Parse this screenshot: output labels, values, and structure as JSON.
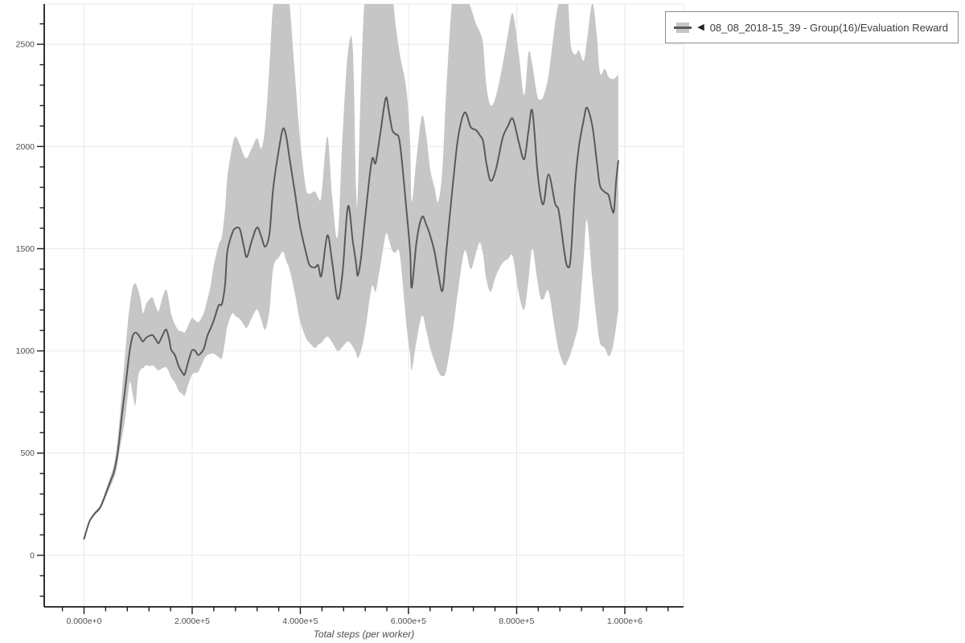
{
  "legend": {
    "collapse_icon": "◀",
    "label": "08_08_2018-15_39 - Group(16)/Evaluation Reward"
  },
  "colors": {
    "band": "#c6c6c6",
    "line": "#595959",
    "grid": "#e8e8e8",
    "axis": "#1a1a1a",
    "tick_label": "#4d4d4d",
    "axis_label": "#4d4d4d",
    "background": "#ffffff",
    "legend_border": "#8a8a8a"
  },
  "chart_data": {
    "type": "line",
    "title": "",
    "xlabel": "Total steps (per worker)",
    "ylabel": "",
    "grid": true,
    "legend_position": "top-right",
    "series_name": "08_08_2018-15_39 - Group(16)/Evaluation Reward",
    "band_meaning": "shaded min/max (std) envelope around mean evaluation reward",
    "xlim": [
      -73600,
      1108600
    ],
    "ylim": [
      -252,
      2697
    ],
    "x_major_ticks": [
      0,
      200000,
      400000,
      600000,
      800000,
      1000000
    ],
    "x_tick_labels": [
      "0.000e+0",
      "2.000e+5",
      "4.000e+5",
      "6.000e+5",
      "8.000e+5",
      "1.000e+6"
    ],
    "x_minor_tick_step": 40000,
    "y_major_ticks": [
      0,
      500,
      1000,
      1500,
      2000,
      2500
    ],
    "y_tick_labels": [
      "0",
      "500",
      "1000",
      "1500",
      "2000",
      "2500"
    ],
    "y_minor_tick_step": 100,
    "points_format": [
      "step",
      "mean",
      "band_low",
      "band_high"
    ],
    "points": [
      [
        0,
        80,
        80,
        80
      ],
      [
        10000,
        165,
        160,
        170
      ],
      [
        20000,
        205,
        197,
        213
      ],
      [
        30000,
        235,
        225,
        245
      ],
      [
        40000,
        300,
        283,
        317
      ],
      [
        50000,
        370,
        345,
        395
      ],
      [
        55000,
        405,
        375,
        440
      ],
      [
        60000,
        465,
        420,
        520
      ],
      [
        65000,
        560,
        500,
        645
      ],
      [
        70000,
        685,
        575,
        800
      ],
      [
        75000,
        790,
        650,
        950
      ],
      [
        80000,
        905,
        755,
        1110
      ],
      [
        85000,
        1010,
        850,
        1230
      ],
      [
        90000,
        1073,
        790,
        1310
      ],
      [
        95000,
        1090,
        735,
        1330
      ],
      [
        100000,
        1080,
        870,
        1300
      ],
      [
        105000,
        1060,
        910,
        1245
      ],
      [
        109000,
        1046,
        915,
        1185
      ],
      [
        115000,
        1065,
        930,
        1230
      ],
      [
        122000,
        1075,
        925,
        1255
      ],
      [
        127000,
        1077,
        930,
        1260
      ],
      [
        133000,
        1055,
        915,
        1215
      ],
      [
        138000,
        1038,
        905,
        1195
      ],
      [
        145000,
        1075,
        915,
        1260
      ],
      [
        152000,
        1104,
        920,
        1300
      ],
      [
        158000,
        1050,
        890,
        1230
      ],
      [
        161000,
        1006,
        870,
        1180
      ],
      [
        168000,
        980,
        845,
        1130
      ],
      [
        175000,
        925,
        805,
        1100
      ],
      [
        182000,
        893,
        790,
        1095
      ],
      [
        186000,
        885,
        780,
        1090
      ],
      [
        192000,
        940,
        830,
        1120
      ],
      [
        199000,
        999,
        880,
        1160
      ],
      [
        205000,
        1002,
        893,
        1150
      ],
      [
        211000,
        980,
        896,
        1140
      ],
      [
        217000,
        992,
        930,
        1160
      ],
      [
        222000,
        1014,
        960,
        1190
      ],
      [
        228000,
        1073,
        980,
        1250
      ],
      [
        234000,
        1110,
        985,
        1320
      ],
      [
        240000,
        1150,
        987,
        1420
      ],
      [
        249000,
        1223,
        970,
        1520
      ],
      [
        255000,
        1230,
        965,
        1560
      ],
      [
        261000,
        1330,
        1050,
        1700
      ],
      [
        265000,
        1486,
        1120,
        1850
      ],
      [
        274000,
        1576,
        1183,
        2000
      ],
      [
        280000,
        1600,
        1170,
        2048
      ],
      [
        288000,
        1596,
        1156,
        2010
      ],
      [
        295000,
        1517,
        1130,
        1960
      ],
      [
        301000,
        1459,
        1113,
        1943
      ],
      [
        310000,
        1537,
        1160,
        1990
      ],
      [
        320000,
        1604,
        1203,
        2040
      ],
      [
        328000,
        1557,
        1150,
        1990
      ],
      [
        335000,
        1510,
        1105,
        2100
      ],
      [
        343000,
        1576,
        1200,
        2400
      ],
      [
        350000,
        1800,
        1408,
        2700
      ],
      [
        361000,
        1997,
        1460,
        2750
      ],
      [
        368000,
        2088,
        1486,
        2750
      ],
      [
        374000,
        2048,
        1440,
        2750
      ],
      [
        380000,
        1943,
        1400,
        2700
      ],
      [
        390000,
        1773,
        1280,
        2350
      ],
      [
        399000,
        1616,
        1150,
        2050
      ],
      [
        410000,
        1486,
        1066,
        1800
      ],
      [
        417000,
        1420,
        1040,
        1770
      ],
      [
        427000,
        1408,
        1014,
        1780
      ],
      [
        433000,
        1420,
        1030,
        1750
      ],
      [
        439000,
        1368,
        1040,
        1760
      ],
      [
        450000,
        1565,
        1070,
        2050
      ],
      [
        459000,
        1430,
        1040,
        1750
      ],
      [
        469000,
        1254,
        1000,
        1560
      ],
      [
        478000,
        1380,
        1020,
        2050
      ],
      [
        488000,
        1707,
        1046,
        2460
      ],
      [
        497000,
        1537,
        1020,
        2480
      ],
      [
        503000,
        1430,
        990,
        1800
      ],
      [
        506000,
        1368,
        965,
        1760
      ],
      [
        512000,
        1450,
        1000,
        2300
      ],
      [
        520000,
        1655,
        1100,
        2750
      ],
      [
        532000,
        1931,
        1313,
        2750
      ],
      [
        539000,
        1919,
        1290,
        2750
      ],
      [
        547000,
        2048,
        1400,
        2750
      ],
      [
        558000,
        2237,
        1569,
        2750
      ],
      [
        564000,
        2166,
        1540,
        2750
      ],
      [
        570000,
        2080,
        1490,
        2740
      ],
      [
        576000,
        2060,
        1480,
        2600
      ],
      [
        584000,
        2017,
        1470,
        2450
      ],
      [
        596000,
        1695,
        1130,
        2280
      ],
      [
        603000,
        1486,
        980,
        2020
      ],
      [
        606000,
        1309,
        908,
        1730
      ],
      [
        615000,
        1537,
        1050,
        1950
      ],
      [
        625000,
        1655,
        1172,
        2150
      ],
      [
        633000,
        1616,
        1100,
        2050
      ],
      [
        640000,
        1565,
        1014,
        1890
      ],
      [
        648000,
        1486,
        950,
        1800
      ],
      [
        655000,
        1380,
        900,
        1730
      ],
      [
        663000,
        1295,
        876,
        1900
      ],
      [
        670000,
        1490,
        908,
        2285
      ],
      [
        682000,
        1813,
        1100,
        2750
      ],
      [
        692000,
        2048,
        1300,
        2750
      ],
      [
        704000,
        2166,
        1490,
        2750
      ],
      [
        715000,
        2095,
        1400,
        2680
      ],
      [
        725000,
        2080,
        1480,
        2600
      ],
      [
        732000,
        2055,
        1530,
        2560
      ],
      [
        738000,
        2025,
        1470,
        2500
      ],
      [
        744000,
        1919,
        1350,
        2300
      ],
      [
        752000,
        1832,
        1290,
        2200
      ],
      [
        762000,
        1892,
        1370,
        2250
      ],
      [
        774000,
        2041,
        1430,
        2400
      ],
      [
        784000,
        2100,
        1450,
        2550
      ],
      [
        793000,
        2135,
        1460,
        2650
      ],
      [
        804000,
        2020,
        1280,
        2450
      ],
      [
        814000,
        1938,
        1203,
        2250
      ],
      [
        822000,
        2080,
        1350,
        2460
      ],
      [
        829000,
        2174,
        1500,
        2400
      ],
      [
        838000,
        1892,
        1350,
        2250
      ],
      [
        844000,
        1761,
        1260,
        2230
      ],
      [
        850000,
        1722,
        1255,
        2250
      ],
      [
        859000,
        1864,
        1290,
        2350
      ],
      [
        871000,
        1722,
        1100,
        2600
      ],
      [
        878000,
        1683,
        1000,
        2700
      ],
      [
        888000,
        1486,
        930,
        2750
      ],
      [
        894000,
        1412,
        950,
        2750
      ],
      [
        900000,
        1459,
        990,
        2500
      ],
      [
        908000,
        1813,
        1060,
        2450
      ],
      [
        915000,
        1997,
        1150,
        2470
      ],
      [
        924000,
        2130,
        1450,
        2420
      ],
      [
        930000,
        2190,
        1640,
        2520
      ],
      [
        940000,
        2100,
        1350,
        2700
      ],
      [
        948000,
        1931,
        1150,
        2550
      ],
      [
        954000,
        1810,
        1040,
        2360
      ],
      [
        963000,
        1777,
        1014,
        2380
      ],
      [
        970000,
        1761,
        975,
        2340
      ],
      [
        976000,
        1695,
        1000,
        2330
      ],
      [
        980000,
        1687,
        1050,
        2330
      ],
      [
        984000,
        1832,
        1120,
        2340
      ],
      [
        988000,
        1930,
        1203,
        2350
      ]
    ]
  }
}
